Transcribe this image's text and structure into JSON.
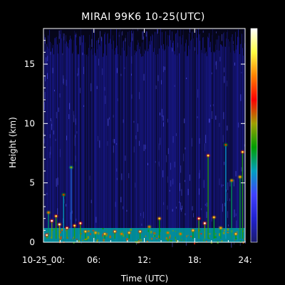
{
  "chart_data": {
    "type": "heatmap",
    "title": "MIRAI 99K6 10-25(UTC)",
    "xlabel": "Time (UTC)",
    "ylabel": "Height (km)",
    "xlim": [
      0,
      24
    ],
    "ylim": [
      0,
      18
    ],
    "x_ticks": [
      {
        "value": 0,
        "label": "10-25_00:"
      },
      {
        "value": 6,
        "label": "06:"
      },
      {
        "value": 12,
        "label": "12:"
      },
      {
        "value": 18,
        "label": "18:"
      },
      {
        "value": 24,
        "label": "24:"
      }
    ],
    "y_ticks": [
      {
        "value": 0,
        "label": "0"
      },
      {
        "value": 5,
        "label": "5"
      },
      {
        "value": 10,
        "label": "10"
      },
      {
        "value": 15,
        "label": "15"
      }
    ],
    "grid": false,
    "colorbar": {
      "placement": "right",
      "colors": [
        "#1a1a6e",
        "#2020d0",
        "#4040ff",
        "#00a0c0",
        "#00a000",
        "#a0a000",
        "#ff0000",
        "#ff8000",
        "#ffff40",
        "#ffffff"
      ]
    },
    "background_color": "#06061a",
    "noise_color": "#2a2aff",
    "features": [
      {
        "kind": "boundary_layer",
        "x_range": [
          0,
          24
        ],
        "height_range": [
          0,
          1.2
        ],
        "level": 0.35
      },
      {
        "kind": "cloud_echo",
        "x": 0.4,
        "height": 0.6,
        "level": 0.9
      },
      {
        "kind": "cloud_echo",
        "x": 0.6,
        "height": 2.5,
        "level": 0.7
      },
      {
        "kind": "cloud_echo",
        "x": 1.0,
        "height": 1.8,
        "level": 0.95
      },
      {
        "kind": "cloud_echo",
        "x": 1.5,
        "height": 2.2,
        "level": 0.85
      },
      {
        "kind": "cloud_echo",
        "x": 1.9,
        "height": 1.5,
        "level": 1.0
      },
      {
        "kind": "cloud_echo",
        "x": 2.4,
        "height": 4.0,
        "level": 0.6
      },
      {
        "kind": "cloud_echo",
        "x": 2.8,
        "height": 1.2,
        "level": 0.9
      },
      {
        "kind": "cloud_echo",
        "x": 3.3,
        "height": 6.3,
        "level": 0.5
      },
      {
        "kind": "cloud_echo",
        "x": 3.7,
        "height": 1.4,
        "level": 0.85
      },
      {
        "kind": "cloud_echo",
        "x": 4.4,
        "height": 1.6,
        "level": 0.9
      },
      {
        "kind": "cloud_echo",
        "x": 5.0,
        "height": 0.9,
        "level": 0.8
      },
      {
        "kind": "cloud_echo",
        "x": 6.2,
        "height": 0.8,
        "level": 0.75
      },
      {
        "kind": "cloud_echo",
        "x": 7.3,
        "height": 0.7,
        "level": 0.8
      },
      {
        "kind": "cloud_echo",
        "x": 8.5,
        "height": 0.9,
        "level": 0.85
      },
      {
        "kind": "cloud_echo",
        "x": 9.3,
        "height": 0.7,
        "level": 0.7
      },
      {
        "kind": "cloud_echo",
        "x": 10.2,
        "height": 0.8,
        "level": 0.8
      },
      {
        "kind": "cloud_echo",
        "x": 11.5,
        "height": 0.9,
        "level": 0.85
      },
      {
        "kind": "cloud_echo",
        "x": 12.6,
        "height": 1.3,
        "level": 0.7
      },
      {
        "kind": "cloud_echo",
        "x": 13.8,
        "height": 2.0,
        "level": 0.8
      },
      {
        "kind": "cloud_echo",
        "x": 14.8,
        "height": 0.8,
        "level": 0.7
      },
      {
        "kind": "cloud_echo",
        "x": 16.3,
        "height": 0.7,
        "level": 0.7
      },
      {
        "kind": "cloud_echo",
        "x": 17.8,
        "height": 1.0,
        "level": 0.8
      },
      {
        "kind": "cloud_echo",
        "x": 18.5,
        "height": 2.0,
        "level": 0.9
      },
      {
        "kind": "cloud_echo",
        "x": 19.2,
        "height": 1.6,
        "level": 0.95
      },
      {
        "kind": "cloud_echo",
        "x": 19.6,
        "height": 7.3,
        "level": 0.85
      },
      {
        "kind": "cloud_echo",
        "x": 20.3,
        "height": 2.1,
        "level": 0.8
      },
      {
        "kind": "cloud_echo",
        "x": 21.1,
        "height": 1.2,
        "level": 0.75
      },
      {
        "kind": "cloud_echo",
        "x": 21.7,
        "height": 8.2,
        "level": 0.6
      },
      {
        "kind": "cloud_echo",
        "x": 22.4,
        "height": 5.2,
        "level": 0.7
      },
      {
        "kind": "cloud_echo",
        "x": 22.9,
        "height": 0.7,
        "level": 0.8
      },
      {
        "kind": "cloud_echo",
        "x": 23.4,
        "height": 5.5,
        "level": 0.75
      },
      {
        "kind": "cloud_echo",
        "x": 23.7,
        "height": 7.6,
        "level": 0.85
      }
    ]
  }
}
